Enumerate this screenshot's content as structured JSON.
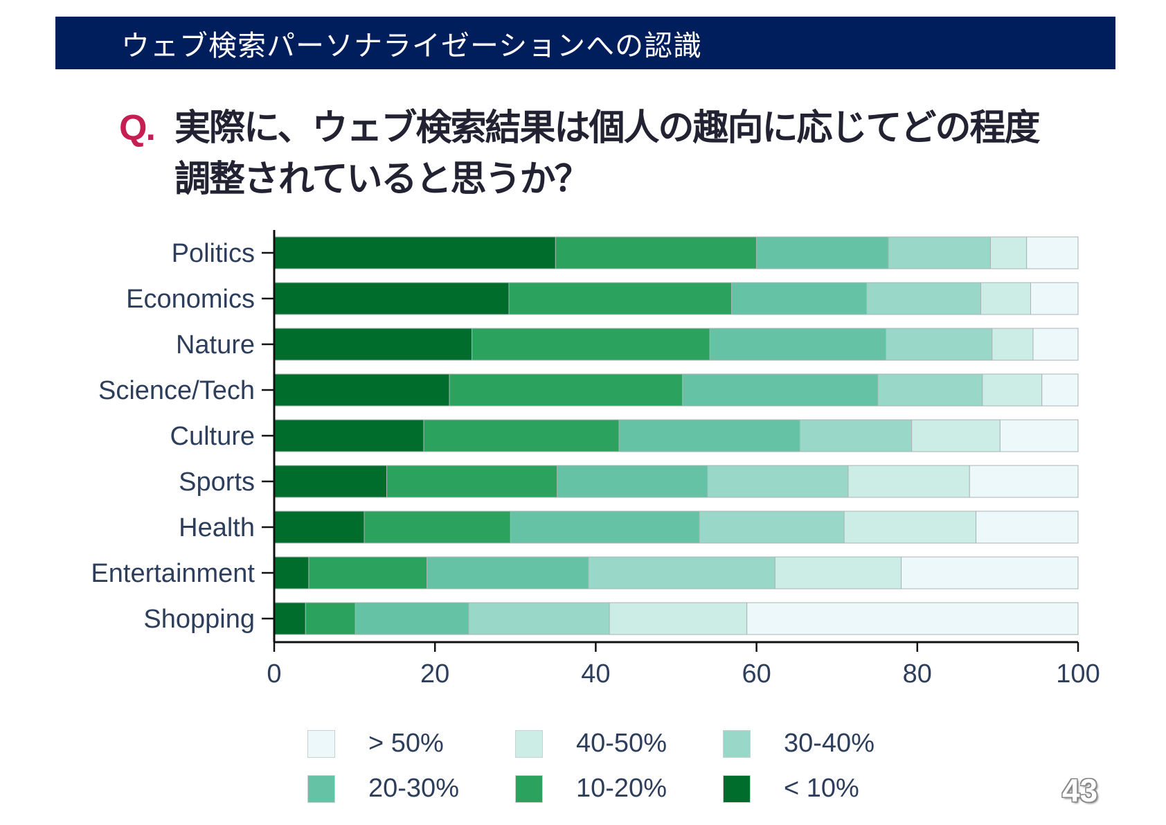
{
  "header": {
    "title": "ウェブ検索パーソナライゼーションへの認識"
  },
  "question": {
    "mark": "Q.",
    "text": "実際に、ウェブ検索結果は個人の趣向に応じてどの程度調整されていると思うか？"
  },
  "page_number": "43",
  "colors": {
    "header_bg": "#001d5c",
    "question_mark": "#c41e52",
    "text": "#2c3e5c"
  },
  "chart_data": {
    "type": "bar",
    "orientation": "horizontal",
    "stacked": true,
    "categories": [
      "Politics",
      "Economics",
      "Nature",
      "Science/Tech",
      "Culture",
      "Sports",
      "Health",
      "Entertainment",
      "Shopping"
    ],
    "xlim": [
      0,
      100
    ],
    "xticks": [
      0,
      20,
      40,
      60,
      80,
      100
    ],
    "legend_placement": "bottom",
    "series": [
      {
        "name": "< 10%",
        "color": "#006d2c",
        "values": [
          35.0,
          29.2,
          24.6,
          21.8,
          18.6,
          14.0,
          11.2,
          4.3,
          3.9
        ]
      },
      {
        "name": "10-20%",
        "color": "#2ca25f",
        "values": [
          25.0,
          27.7,
          29.6,
          29.0,
          24.3,
          21.2,
          18.2,
          14.7,
          6.2
        ]
      },
      {
        "name": "20-30%",
        "color": "#66c2a4",
        "values": [
          16.4,
          16.8,
          21.9,
          24.3,
          22.5,
          18.7,
          23.5,
          20.1,
          14.1
        ]
      },
      {
        "name": "30-40%",
        "color": "#99d8c9",
        "values": [
          12.7,
          14.2,
          13.2,
          13.0,
          13.9,
          17.5,
          18.0,
          23.2,
          17.5
        ]
      },
      {
        "name": "40-50%",
        "color": "#ccece6",
        "values": [
          4.5,
          6.2,
          5.1,
          7.4,
          11.0,
          15.1,
          16.4,
          15.7,
          17.1
        ]
      },
      {
        "name": "> 50%",
        "color": "#edf8fb",
        "values": [
          6.4,
          5.9,
          5.6,
          4.5,
          9.7,
          13.5,
          12.7,
          22.0,
          41.2
        ]
      }
    ],
    "legend_order": [
      "> 50%",
      "40-50%",
      "30-40%",
      "20-30%",
      "10-20%",
      "< 10%"
    ]
  }
}
